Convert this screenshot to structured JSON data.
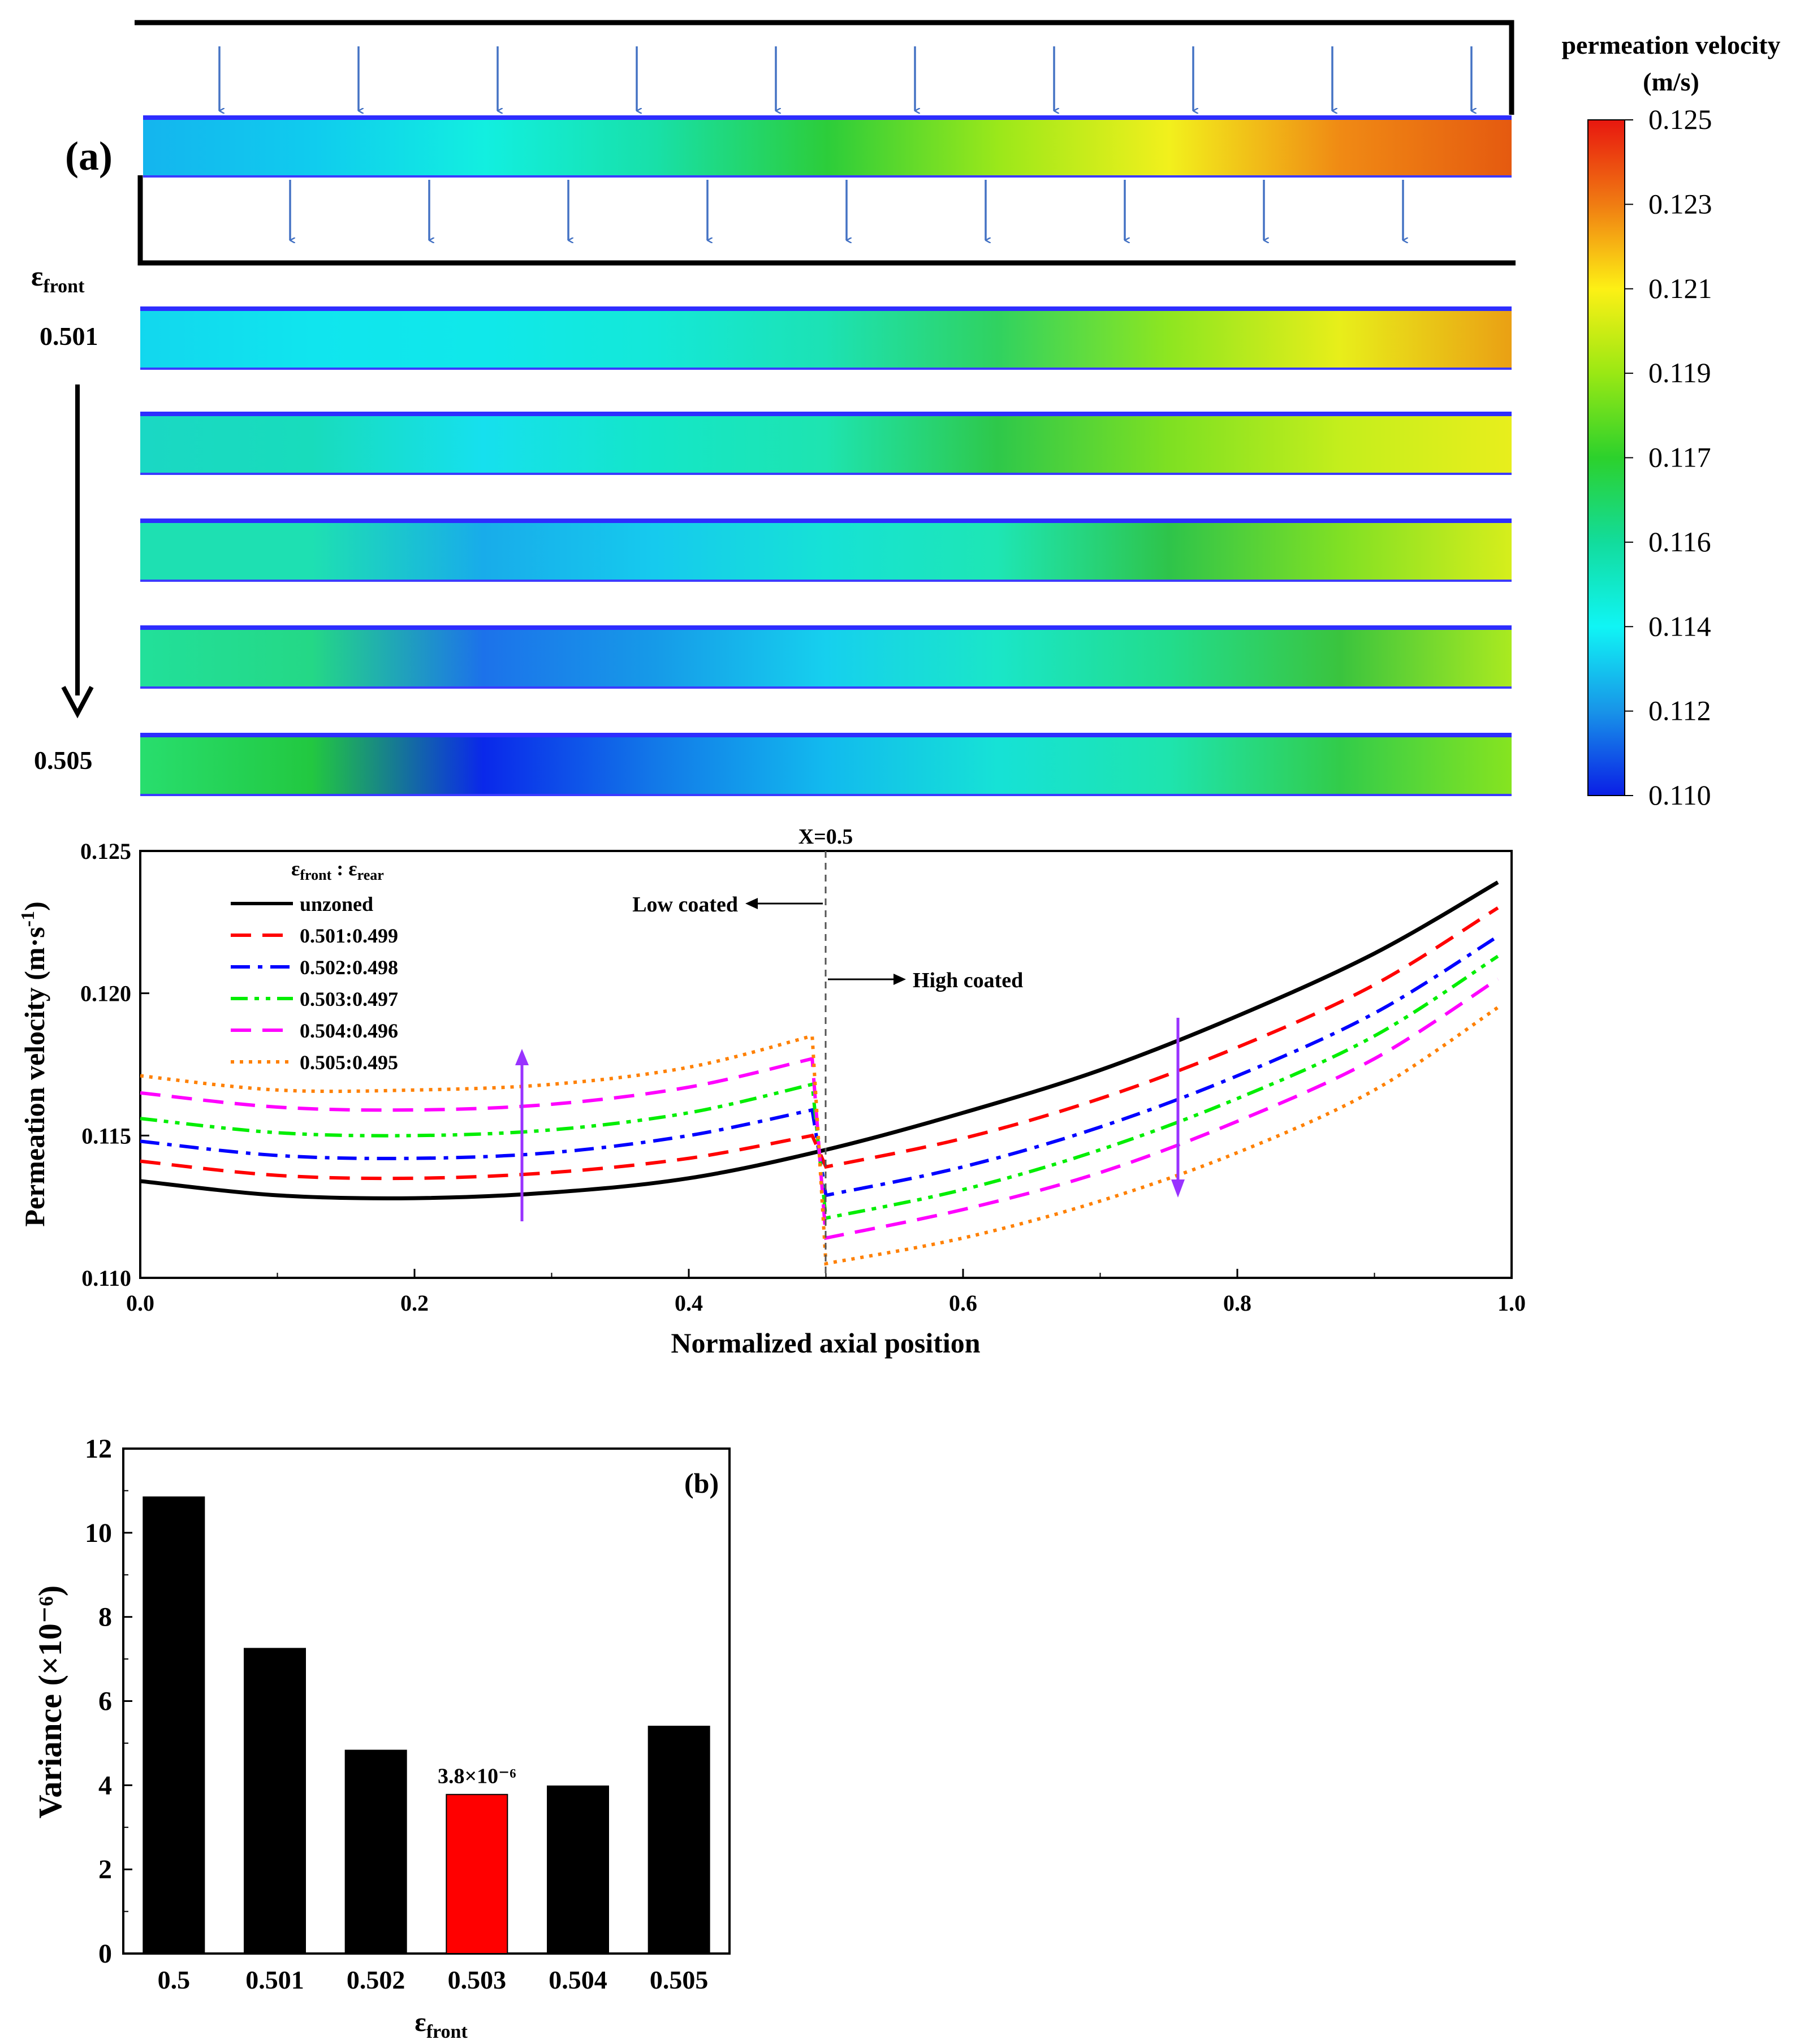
{
  "panel_a_label": "(a)",
  "panel_b_label": "(b)",
  "colorbar": {
    "title_line1": "permeation velocity",
    "title_line2": "(m/s)",
    "ticks": [
      "0.125",
      "0.123",
      "0.121",
      "0.119",
      "0.117",
      "0.116",
      "0.114",
      "0.112",
      "0.110"
    ],
    "stops": [
      "#e8170f",
      "#f07c12",
      "#fdf015",
      "#9ae814",
      "#2cd12c",
      "#12dc9c",
      "#10f5f5",
      "#1894e8",
      "#0a1ee6"
    ]
  },
  "contour_stack": {
    "epsilon_label": "ε",
    "epsilon_sub": "front",
    "start_label": "0.501",
    "end_label": "0.505",
    "strips": [
      {
        "name": "unzoned",
        "colors": [
          "#14b5ee",
          "#10ccee",
          "#12efe0",
          "#18e0a8",
          "#2ccd3a",
          "#9be81a",
          "#f2f01c",
          "#f08a14",
          "#e55a10"
        ]
      },
      {
        "name": "0.501:0.499",
        "colors": [
          "#12d7ee",
          "#10e5ee",
          "#10e8ea",
          "#14e8d8",
          "#1ce2b4",
          "#30d260",
          "#8ee620",
          "#e8ee1a",
          "#eaa014"
        ]
      },
      {
        "name": "0.502:0.498",
        "colors": [
          "#1ad8c4",
          "#18dcbc",
          "#16e0ee",
          "#14e6c8",
          "#1ee4b0",
          "#2ec84a",
          "#7ee022",
          "#c4ee1c",
          "#e8ee1c"
        ]
      },
      {
        "name": "0.503:0.497",
        "colors": [
          "#1ee0b2",
          "#1ee0b2",
          "#18acea",
          "#16caee",
          "#16e2d6",
          "#1ee6b4",
          "#2ec44a",
          "#80e024",
          "#d6ee1c"
        ]
      },
      {
        "name": "0.504:0.496",
        "colors": [
          "#22e09a",
          "#24d886",
          "#1c72ea",
          "#169ae8",
          "#16d0ee",
          "#1ae6c8",
          "#22dc8c",
          "#3ac43e",
          "#aaea20"
        ]
      },
      {
        "name": "0.505:0.495",
        "colors": [
          "#28de6e",
          "#22c840",
          "#0a28ea",
          "#1278e8",
          "#12baee",
          "#16e2d6",
          "#1ee4ae",
          "#32cc4a",
          "#86e420"
        ]
      }
    ]
  },
  "chart_data": [
    {
      "type": "line",
      "title": "",
      "xlabel": "Normalized axial position",
      "ylabel": "Permeation velocity (m·s⁻¹)",
      "xlim": [
        0.0,
        1.0
      ],
      "ylim": [
        0.11,
        0.125
      ],
      "x_ticks": [
        "0.0",
        "0.2",
        "0.4",
        "0.6",
        "0.8",
        "1.0"
      ],
      "y_ticks": [
        "0.110",
        "0.115",
        "0.120",
        "0.125"
      ],
      "legend_title": "ε_front : ε_rear",
      "annotations": {
        "x_marker": "X=0.5",
        "low_coated": "Low coated",
        "high_coated": "High coated"
      },
      "series": [
        {
          "name": "unzoned",
          "color": "#000000",
          "style": "solid",
          "x": [
            0.0,
            0.1,
            0.2,
            0.3,
            0.4,
            0.5,
            0.6,
            0.7,
            0.8,
            0.9,
            0.99
          ],
          "y": [
            0.1134,
            0.1129,
            0.1128,
            0.113,
            0.1135,
            0.1145,
            0.1158,
            0.1173,
            0.1192,
            0.1214,
            0.1239
          ]
        },
        {
          "name": "0.501:0.499",
          "color": "#ff0000",
          "style": "dash",
          "x": [
            0.0,
            0.1,
            0.2,
            0.3,
            0.4,
            0.49,
            0.5,
            0.6,
            0.7,
            0.8,
            0.9,
            0.99
          ],
          "y": [
            0.1141,
            0.1136,
            0.1135,
            0.1137,
            0.1142,
            0.115,
            0.1139,
            0.1149,
            0.1163,
            0.1181,
            0.1203,
            0.123
          ]
        },
        {
          "name": "0.502:0.498",
          "color": "#0000ff",
          "style": "dashdot",
          "x": [
            0.0,
            0.1,
            0.2,
            0.3,
            0.4,
            0.49,
            0.5,
            0.6,
            0.7,
            0.8,
            0.9,
            0.99
          ],
          "y": [
            0.1148,
            0.1143,
            0.1142,
            0.1144,
            0.115,
            0.1159,
            0.1129,
            0.1139,
            0.1153,
            0.1171,
            0.1193,
            0.122
          ]
        },
        {
          "name": "0.503:0.497",
          "color": "#00ee00",
          "style": "dashdotdot",
          "x": [
            0.0,
            0.1,
            0.2,
            0.3,
            0.4,
            0.49,
            0.5,
            0.6,
            0.7,
            0.8,
            0.9,
            0.99
          ],
          "y": [
            0.1156,
            0.1151,
            0.115,
            0.1152,
            0.1158,
            0.1168,
            0.1121,
            0.1131,
            0.1145,
            0.1163,
            0.1185,
            0.1213
          ]
        },
        {
          "name": "0.504:0.496",
          "color": "#ff00ff",
          "style": "dash",
          "x": [
            0.0,
            0.1,
            0.2,
            0.3,
            0.4,
            0.49,
            0.5,
            0.6,
            0.7,
            0.8,
            0.9,
            0.99
          ],
          "y": [
            0.1165,
            0.116,
            0.1159,
            0.1161,
            0.1167,
            0.1177,
            0.1114,
            0.1124,
            0.1137,
            0.1155,
            0.1177,
            0.1205
          ]
        },
        {
          "name": "0.505:0.495",
          "color": "#ff8000",
          "style": "dot",
          "x": [
            0.0,
            0.1,
            0.2,
            0.3,
            0.4,
            0.49,
            0.5,
            0.6,
            0.7,
            0.8,
            0.9,
            0.99
          ],
          "y": [
            0.1171,
            0.1166,
            0.1166,
            0.1168,
            0.1174,
            0.1185,
            0.1105,
            0.1114,
            0.1127,
            0.1144,
            0.1166,
            0.1195
          ]
        }
      ]
    },
    {
      "type": "bar",
      "title": "",
      "xlabel": "ε",
      "xlabel_sub": "front",
      "ylabel": "Variance (×10⁻⁶)",
      "ylim": [
        0,
        12
      ],
      "y_ticks": [
        "0",
        "2",
        "4",
        "6",
        "8",
        "10",
        "12"
      ],
      "categories": [
        "0.5",
        "0.501",
        "0.502",
        "0.503",
        "0.504",
        "0.505"
      ],
      "values": [
        10.85,
        7.25,
        4.83,
        3.78,
        3.98,
        5.4
      ],
      "colors": [
        "#000000",
        "#000000",
        "#000000",
        "#ff0000",
        "#000000",
        "#000000"
      ],
      "data_label": {
        "index": 3,
        "text": "3.8×10⁻⁶"
      }
    }
  ]
}
